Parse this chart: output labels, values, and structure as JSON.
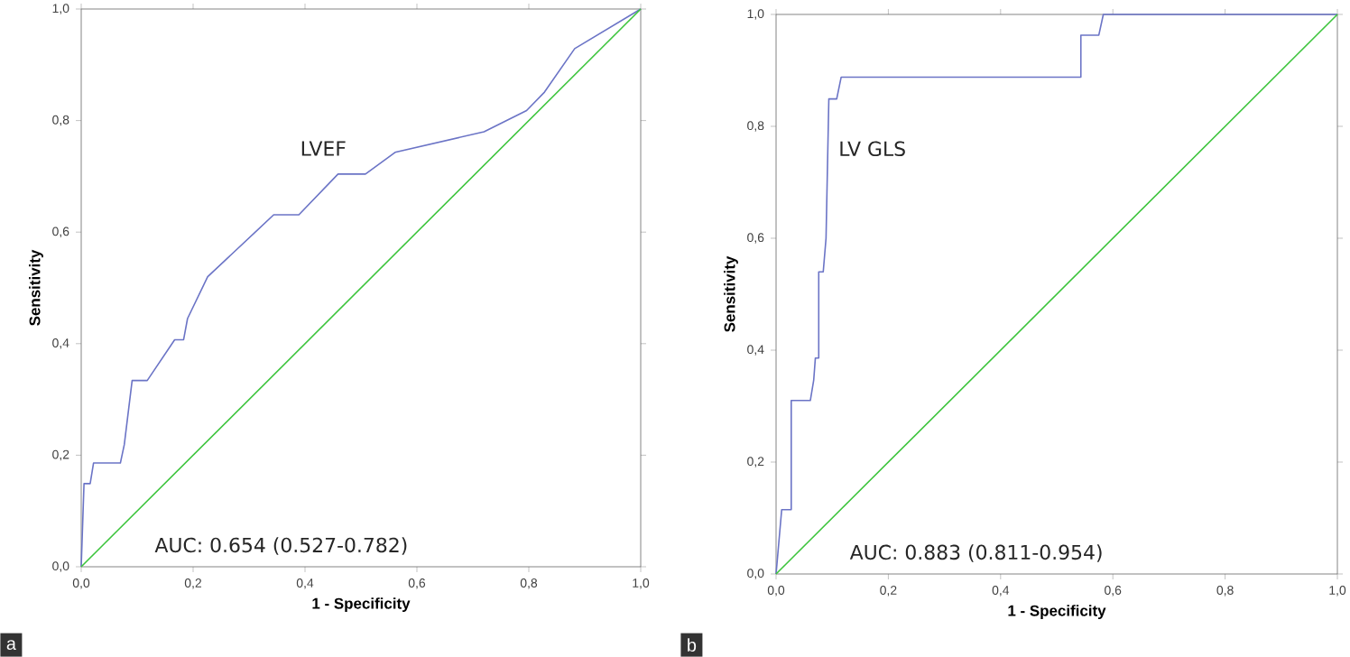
{
  "chart_data": [
    {
      "type": "line",
      "xlabel": "1 - Specificity",
      "ylabel": "Sensitivity",
      "series": [
        {
          "name": "LVEF",
          "color": "#6b74c6",
          "x": [
            0,
            0.005,
            0.016,
            0.022,
            0.07,
            0.077,
            0.091,
            0.118,
            0.167,
            0.183,
            0.19,
            0.226,
            0.344,
            0.389,
            0.459,
            0.508,
            0.561,
            0.72,
            0.796,
            0.828,
            0.882,
            1
          ],
          "values": [
            0,
            0.149,
            0.149,
            0.186,
            0.186,
            0.219,
            0.334,
            0.334,
            0.407,
            0.407,
            0.445,
            0.52,
            0.631,
            0.631,
            0.704,
            0.704,
            0.743,
            0.78,
            0.818,
            0.851,
            0.929,
            1
          ]
        },
        {
          "color": "#3cc43c",
          "x": [
            0,
            1
          ],
          "values": [
            0,
            1
          ]
        }
      ],
      "xlim": [
        0,
        1
      ],
      "ylim": [
        0,
        1
      ],
      "xticks": [
        {
          "value": 0,
          "label": "0,0"
        },
        {
          "value": 0.2,
          "label": "0,2"
        },
        {
          "value": 0.4,
          "label": "0,4"
        },
        {
          "value": 0.6,
          "label": "0,6"
        },
        {
          "value": 0.8,
          "label": "0,8"
        },
        {
          "value": 1,
          "label": "1,0"
        }
      ],
      "yticks": [
        {
          "value": 0,
          "label": "0,0"
        },
        {
          "value": 0.2,
          "label": "0,2"
        },
        {
          "value": 0.4,
          "label": "0,4"
        },
        {
          "value": 0.6,
          "label": "0,6"
        },
        {
          "value": 0.8,
          "label": "0,8"
        },
        {
          "value": 1,
          "label": "1,0"
        }
      ],
      "annotations": [
        "AUC: 0.654 (0.527-0.782)",
        "a"
      ],
      "grid": false,
      "legend": false
    },
    {
      "type": "line",
      "xlabel": "1 - Specificity",
      "ylabel": "Sensitivity",
      "series": [
        {
          "name": "LV GLS",
          "color": "#6b74c6",
          "x": [
            0,
            0.01,
            0.027,
            0.027,
            0.061,
            0.067,
            0.07,
            0.076,
            0.076,
            0.084,
            0.089,
            0.094,
            0.108,
            0.116,
            0.543,
            0.543,
            0.575,
            0.583,
            1
          ],
          "values": [
            0,
            0.115,
            0.115,
            0.31,
            0.31,
            0.346,
            0.386,
            0.386,
            0.54,
            0.54,
            0.6,
            0.849,
            0.849,
            0.888,
            0.888,
            0.963,
            0.963,
            1,
            1
          ]
        },
        {
          "color": "#3cc43c",
          "x": [
            0,
            1
          ],
          "values": [
            0,
            1
          ]
        }
      ],
      "xlim": [
        0,
        1
      ],
      "ylim": [
        0,
        1
      ],
      "xticks": [
        {
          "value": 0,
          "label": "0,0"
        },
        {
          "value": 0.2,
          "label": "0,2"
        },
        {
          "value": 0.4,
          "label": "0,4"
        },
        {
          "value": 0.6,
          "label": "0,6"
        },
        {
          "value": 0.8,
          "label": "0,8"
        },
        {
          "value": 1,
          "label": "1,0"
        }
      ],
      "yticks": [
        {
          "value": 0,
          "label": "0,0"
        },
        {
          "value": 0.2,
          "label": "0,2"
        },
        {
          "value": 0.4,
          "label": "0,4"
        },
        {
          "value": 0.6,
          "label": "0,6"
        },
        {
          "value": 0.8,
          "label": "0,8"
        },
        {
          "value": 1,
          "label": "1,0"
        }
      ],
      "annotations": [
        "AUC: 0.883 (0.811-0.954)",
        "b"
      ],
      "grid": false,
      "legend": false
    }
  ]
}
